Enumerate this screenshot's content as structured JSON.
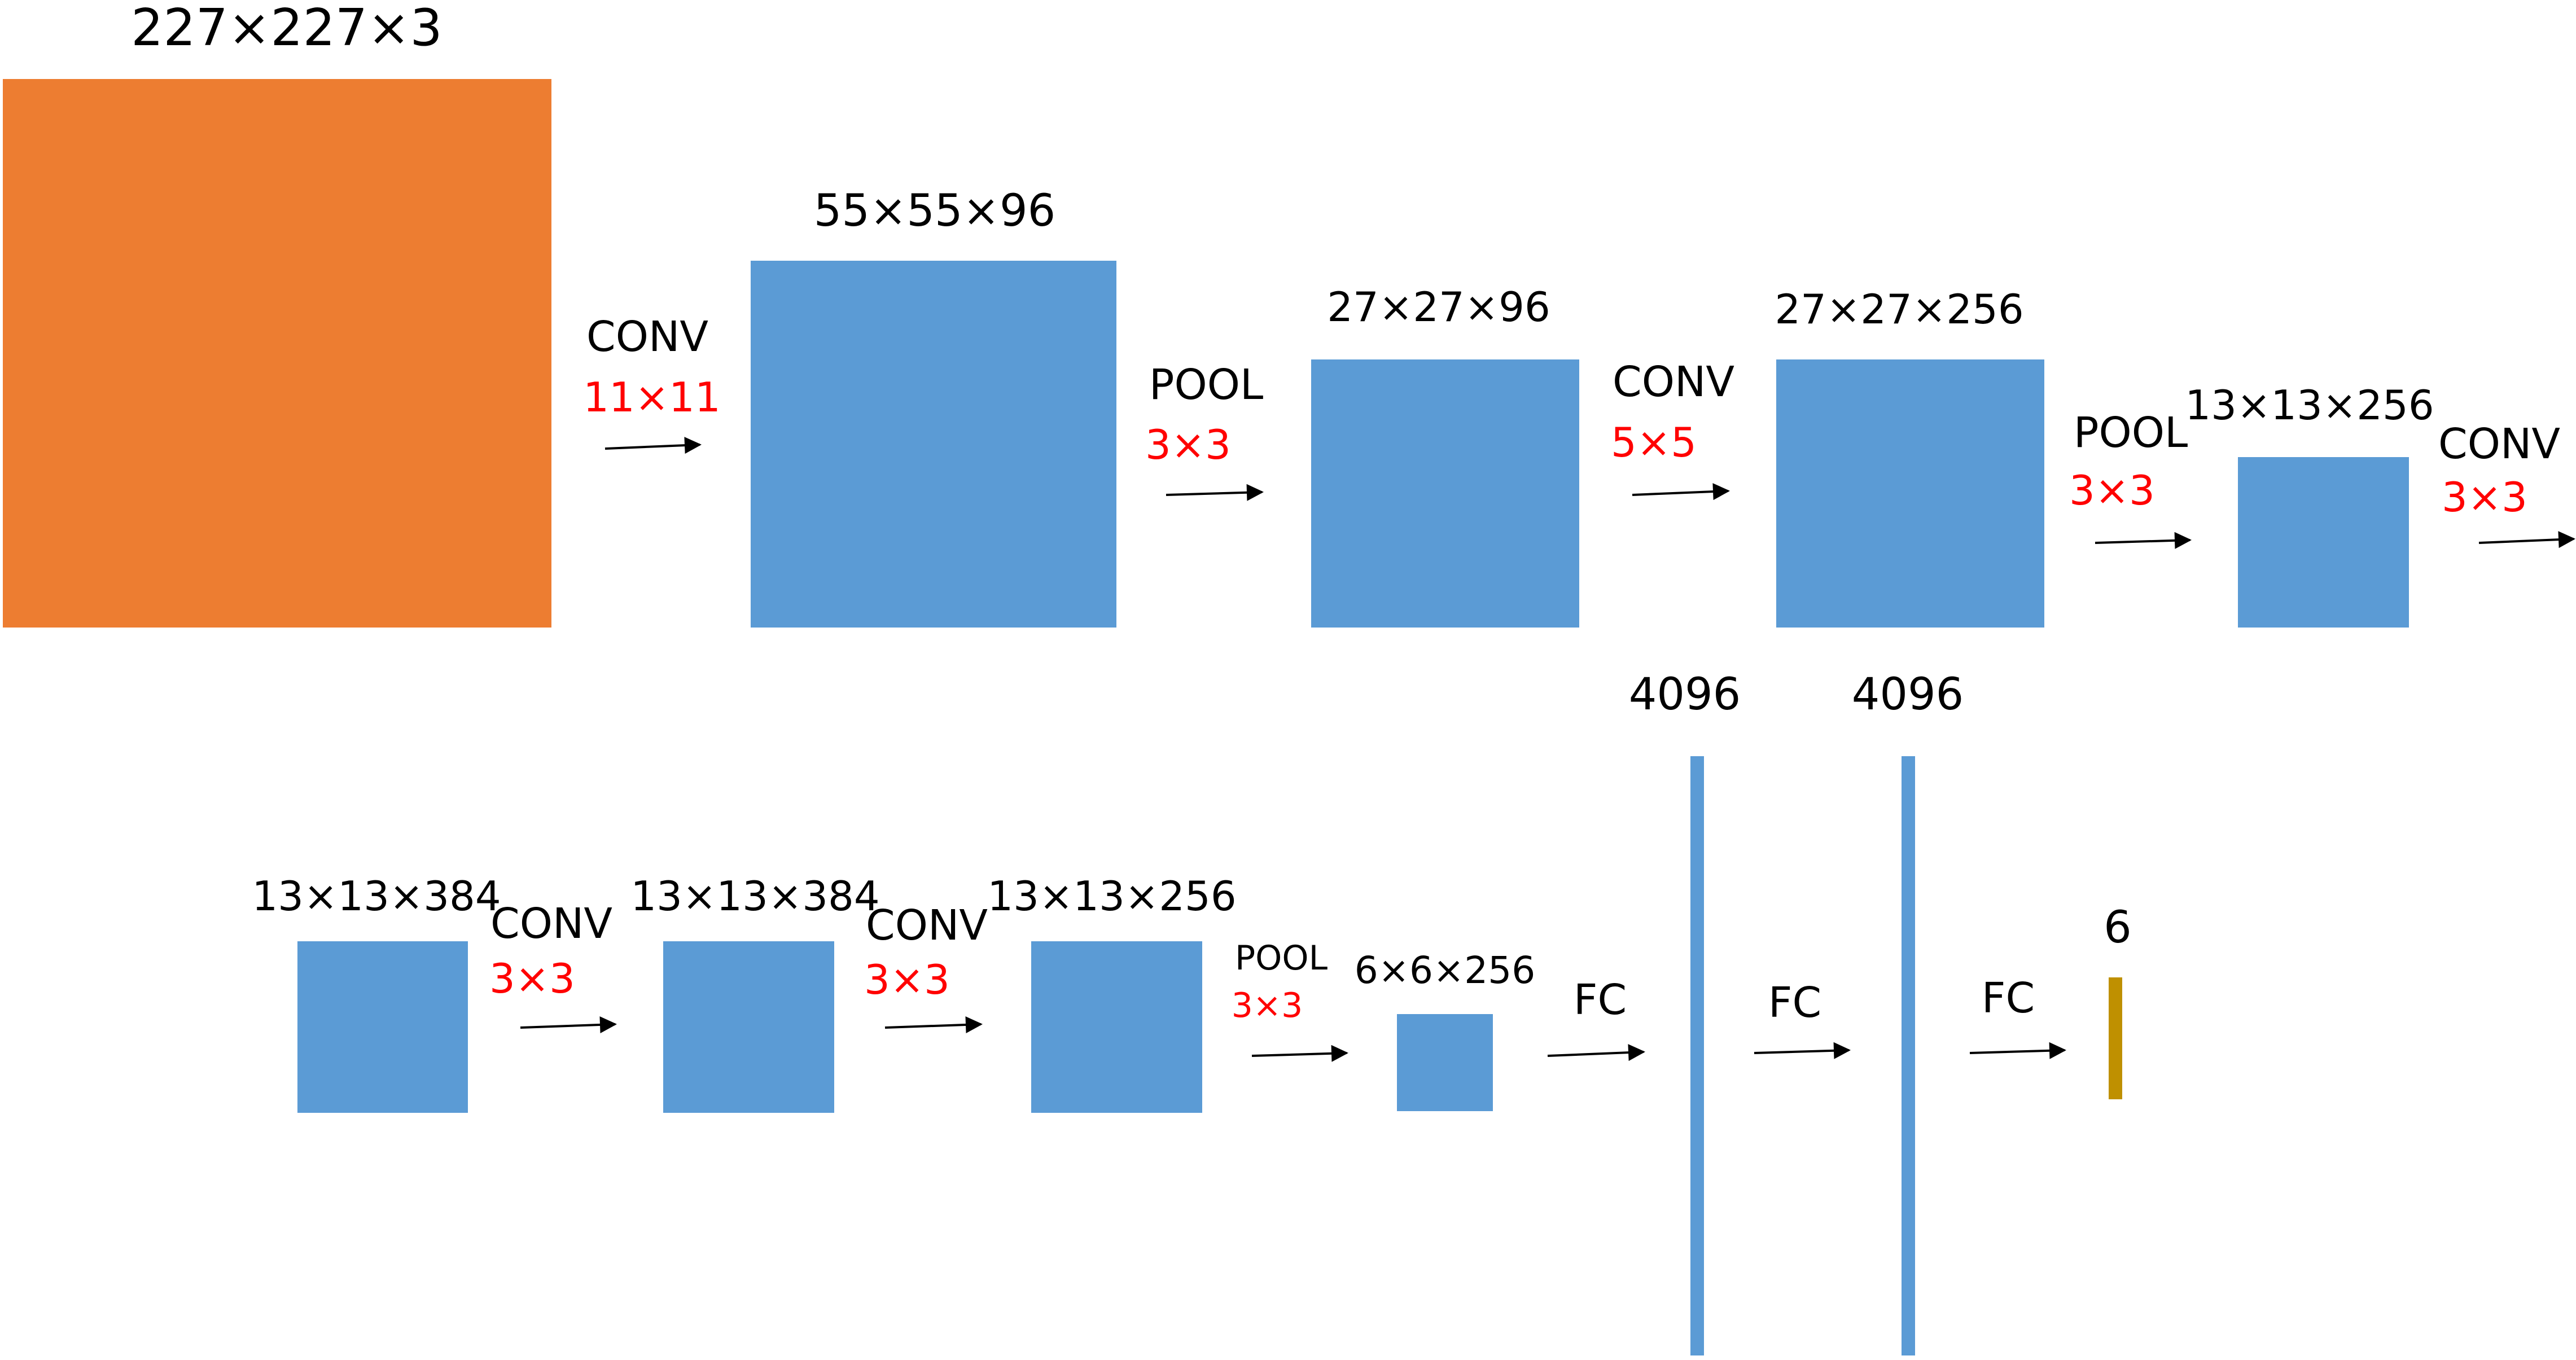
{
  "colors": {
    "input": "#ed7d31",
    "block": "#5b9bd5",
    "output": "#bf9000",
    "kernel": "#ff0000",
    "text": "#000000"
  },
  "input": {
    "dims": "227×227×3"
  },
  "row1": {
    "conv1": {
      "op": "CONV",
      "kernel": "11×11"
    },
    "layer1": {
      "dims": "55×55×96"
    },
    "pool1": {
      "op": "POOL",
      "kernel": "3×3"
    },
    "layer2": {
      "dims": "27×27×96"
    },
    "conv2": {
      "op": "CONV",
      "kernel": "5×5"
    },
    "layer3": {
      "dims": "27×27×256"
    },
    "pool2": {
      "op": "POOL",
      "kernel": "3×3"
    },
    "layer4": {
      "dims": "13×13×256"
    },
    "conv3": {
      "op": "CONV",
      "kernel": "3×3"
    }
  },
  "row2": {
    "layer5": {
      "dims": "13×13×384"
    },
    "conv4": {
      "op": "CONV",
      "kernel": "3×3"
    },
    "layer6": {
      "dims": "13×13×384"
    },
    "conv5": {
      "op": "CONV",
      "kernel": "3×3"
    },
    "layer7": {
      "dims": "13×13×256"
    },
    "pool3": {
      "op": "POOL",
      "kernel": "3×3"
    },
    "layer8": {
      "dims": "6×6×256"
    },
    "fc1": {
      "op": "FC"
    },
    "fc_layer1": {
      "dims": "4096"
    },
    "fc2": {
      "op": "FC"
    },
    "fc_layer2": {
      "dims": "4096"
    },
    "fc3": {
      "op": "FC"
    },
    "output": {
      "dims": "6"
    }
  }
}
